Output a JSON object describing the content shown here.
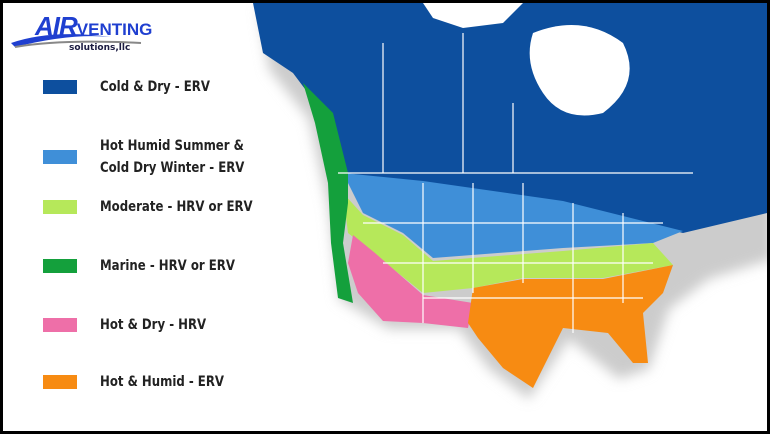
{
  "logo": {
    "text_main": "AIR",
    "text_venting": "VENTING",
    "text_sub": "solutions,llc"
  },
  "legend": [
    {
      "label": "Cold & Dry - ERV",
      "color": "#0d4f9e"
    },
    {
      "label": "Hot Humid Summer &",
      "label2": "Cold Dry Winter - ERV",
      "color": "#3f8fd8"
    },
    {
      "label": "Moderate - HRV or ERV",
      "color": "#b6e85a"
    },
    {
      "label": "Marine - HRV or ERV",
      "color": "#14a03c"
    },
    {
      "label": "Hot & Dry - HRV",
      "color": "#ee6fa8"
    },
    {
      "label": "Hot & Humid - ERV",
      "color": "#f78b12"
    }
  ]
}
